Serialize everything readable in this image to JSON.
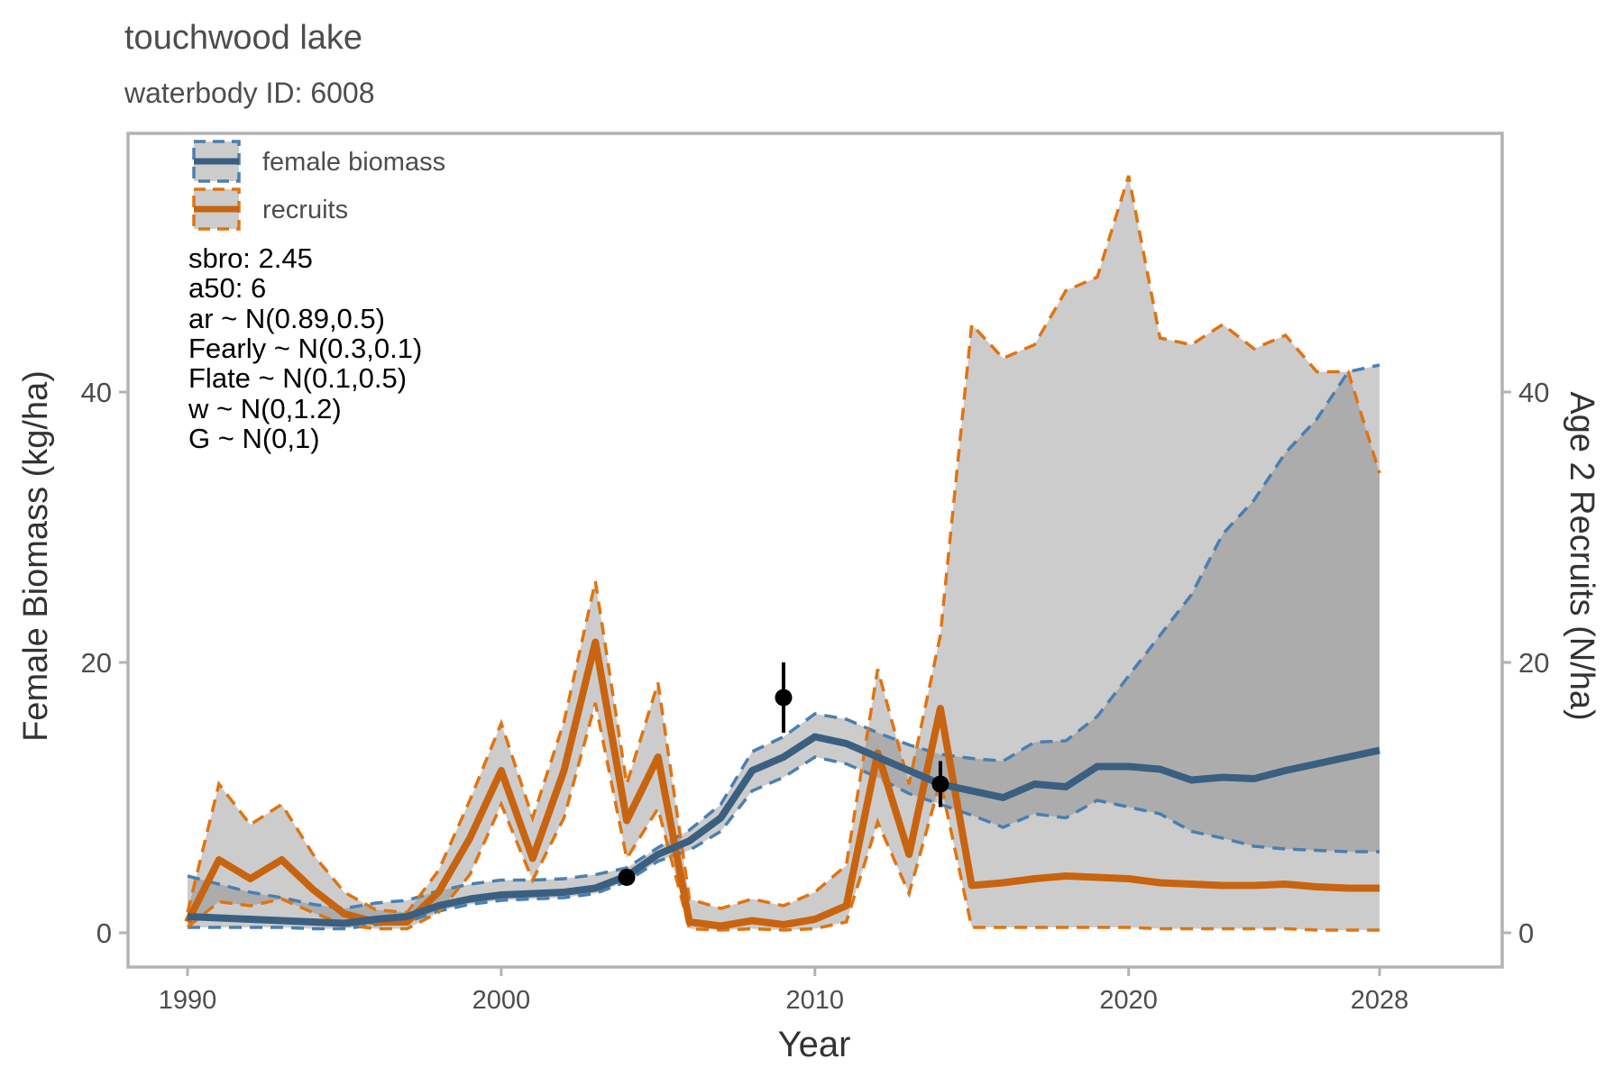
{
  "chart_data": {
    "type": "line",
    "title": "touchwood lake",
    "subtitle": "waterbody ID: 6008",
    "xlabel": "Year",
    "ylabel_left": "Female Biomass (kg/ha)",
    "ylabel_right": "Age 2 Recruits (N/ha)",
    "xlim": [
      1990,
      2028
    ],
    "ylim_left": [
      0,
      55
    ],
    "ylim_right": [
      0,
      55
    ],
    "x_ticks": [
      1990,
      2000,
      2010,
      2020,
      2028
    ],
    "y_ticks_left": [
      0,
      20,
      40
    ],
    "y_ticks_right": [
      0,
      20,
      40
    ],
    "grid": false,
    "legend": {
      "position": "top-left",
      "entries": [
        {
          "label": "female biomass",
          "series": "biomass"
        },
        {
          "label": "recruits",
          "series": "recruits"
        }
      ]
    },
    "annotations": [
      "sbro: 2.45",
      "a50: 6",
      "ar ~ N(0.89,0.5)",
      "Fearly ~ N(0.3,0.1)",
      "Flate ~ N(0.1,0.5)",
      "w ~ N(0,1.2)",
      "G ~ N(0,1)"
    ],
    "x": [
      1990,
      1991,
      1992,
      1993,
      1994,
      1995,
      1996,
      1997,
      1998,
      1999,
      2000,
      2001,
      2002,
      2003,
      2004,
      2005,
      2006,
      2007,
      2008,
      2009,
      2010,
      2011,
      2012,
      2013,
      2014,
      2015,
      2016,
      2017,
      2018,
      2019,
      2020,
      2021,
      2022,
      2023,
      2024,
      2025,
      2026,
      2027,
      2028
    ],
    "series": [
      {
        "name": "female biomass",
        "id": "biomass",
        "axis": "left",
        "color": "#3b5f80",
        "band_color": "#4a7fb0",
        "values": [
          1.2,
          1.1,
          1.0,
          0.9,
          0.8,
          0.7,
          1.0,
          1.2,
          2.0,
          2.5,
          2.8,
          2.9,
          3.0,
          3.3,
          4.2,
          5.8,
          6.8,
          8.5,
          12.0,
          13.0,
          14.5,
          14.0,
          13.0,
          12.0,
          11.0,
          10.5,
          10.0,
          11.0,
          10.8,
          12.3,
          12.3,
          12.1,
          11.3,
          11.5,
          11.4,
          12.0,
          12.5,
          13.0,
          13.5
        ],
        "lower": [
          0.4,
          0.4,
          0.4,
          0.4,
          0.3,
          0.3,
          0.6,
          0.8,
          1.6,
          2.1,
          2.4,
          2.5,
          2.6,
          2.9,
          3.8,
          5.3,
          6.1,
          7.5,
          10.5,
          11.5,
          13.0,
          12.5,
          11.5,
          10.3,
          9.5,
          8.7,
          7.8,
          8.8,
          8.5,
          9.8,
          9.3,
          8.8,
          7.5,
          7.0,
          6.4,
          6.2,
          6.1,
          6.0,
          6.0
        ],
        "upper": [
          4.2,
          3.6,
          3.0,
          2.6,
          2.1,
          1.8,
          2.2,
          2.4,
          3.1,
          3.6,
          3.9,
          3.9,
          4.0,
          4.3,
          4.8,
          6.3,
          7.6,
          9.5,
          13.4,
          14.5,
          16.2,
          15.8,
          14.8,
          13.9,
          13.2,
          12.9,
          12.7,
          14.1,
          14.2,
          16.0,
          19.0,
          22.0,
          25.0,
          29.5,
          32.0,
          35.5,
          38.0,
          41.5,
          42.0
        ]
      },
      {
        "name": "recruits",
        "id": "recruits",
        "axis": "right",
        "color": "#c8640f",
        "band_color": "#e07410",
        "values": [
          0.8,
          5.4,
          4.0,
          5.4,
          3.2,
          1.4,
          0.8,
          0.8,
          3.0,
          7.0,
          12.0,
          5.5,
          12.0,
          21.5,
          8.3,
          13.0,
          0.8,
          0.5,
          0.9,
          0.6,
          1.0,
          2.0,
          13.3,
          5.8,
          16.6,
          3.5,
          3.7,
          4.0,
          4.2,
          4.1,
          4.0,
          3.7,
          3.6,
          3.5,
          3.5,
          3.6,
          3.4,
          3.3,
          3.3
        ],
        "lower": [
          0.4,
          2.3,
          2.0,
          2.5,
          1.5,
          0.6,
          0.3,
          0.3,
          1.5,
          4.3,
          9.5,
          3.9,
          8.5,
          17.0,
          5.5,
          9.2,
          0.3,
          0.2,
          0.3,
          0.2,
          0.3,
          0.8,
          8.2,
          2.9,
          11.2,
          0.4,
          0.4,
          0.4,
          0.4,
          0.4,
          0.4,
          0.3,
          0.3,
          0.3,
          0.3,
          0.3,
          0.2,
          0.2,
          0.2
        ],
        "upper": [
          1.5,
          11.0,
          8.0,
          9.5,
          5.8,
          3.0,
          1.7,
          1.5,
          4.6,
          9.8,
          15.5,
          8.5,
          15.6,
          26.0,
          11.0,
          18.5,
          2.5,
          1.8,
          2.5,
          2.0,
          3.0,
          5.0,
          19.5,
          11.0,
          22.0,
          45.0,
          42.5,
          43.5,
          47.5,
          48.5,
          56.0,
          44.0,
          43.5,
          45.0,
          43.2,
          44.2,
          41.5,
          41.5,
          34.0
        ]
      },
      {
        "name": "",
        "id": "observations",
        "axis": "right",
        "type": "points",
        "color": "#000000",
        "points": [
          {
            "x": 2004,
            "y": 4.1,
            "lo": 4.1,
            "hi": 4.1
          },
          {
            "x": 2009,
            "y": 17.4,
            "lo": 14.8,
            "hi": 20.0
          },
          {
            "x": 2014,
            "y": 11.0,
            "lo": 9.3,
            "hi": 12.7
          }
        ]
      }
    ]
  }
}
